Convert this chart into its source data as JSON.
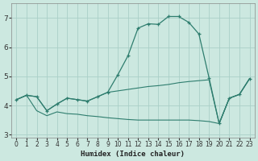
{
  "title": "",
  "xlabel": "Humidex (Indice chaleur)",
  "bg_color": "#cce8e0",
  "grid_color": "#aacfc8",
  "line_color": "#2e7d6e",
  "xlim": [
    -0.5,
    23.5
  ],
  "ylim": [
    2.9,
    7.5
  ],
  "yticks": [
    3,
    4,
    5,
    6,
    7
  ],
  "xticks": [
    0,
    1,
    2,
    3,
    4,
    5,
    6,
    7,
    8,
    9,
    10,
    11,
    12,
    13,
    14,
    15,
    16,
    17,
    18,
    19,
    20,
    21,
    22,
    23
  ],
  "lines": [
    {
      "x": [
        0,
        1,
        2,
        3,
        4,
        5,
        6,
        7,
        8,
        9,
        10,
        11,
        12,
        13,
        14,
        15,
        16,
        17,
        18,
        19,
        20,
        21,
        22,
        23
      ],
      "y": [
        4.2,
        4.35,
        4.3,
        3.82,
        4.05,
        4.25,
        4.2,
        4.15,
        4.3,
        4.45,
        5.05,
        5.7,
        6.65,
        6.8,
        6.78,
        7.05,
        7.05,
        6.85,
        6.45,
        4.95,
        3.38,
        4.25,
        4.38,
        4.92
      ],
      "marker": true
    },
    {
      "x": [
        0,
        1,
        2,
        3,
        4,
        5,
        6,
        7,
        8,
        9,
        10,
        11,
        12,
        13,
        14,
        15,
        16,
        17,
        18,
        19,
        20,
        21,
        22,
        23
      ],
      "y": [
        4.2,
        4.35,
        3.82,
        3.65,
        3.78,
        3.72,
        3.7,
        3.65,
        3.62,
        3.58,
        3.55,
        3.52,
        3.5,
        3.5,
        3.5,
        3.5,
        3.5,
        3.5,
        3.48,
        3.45,
        3.38,
        4.25,
        4.38,
        4.92
      ],
      "marker": false
    },
    {
      "x": [
        0,
        1,
        2,
        3,
        4,
        5,
        6,
        7,
        8,
        9,
        10,
        11,
        12,
        13,
        14,
        15,
        16,
        17,
        18,
        19,
        20,
        21,
        22,
        23
      ],
      "y": [
        4.2,
        4.35,
        4.3,
        3.82,
        4.05,
        4.25,
        4.2,
        4.15,
        4.3,
        4.45,
        4.5,
        4.55,
        4.6,
        4.65,
        4.68,
        4.72,
        4.78,
        4.82,
        4.85,
        4.88,
        3.38,
        4.25,
        4.38,
        4.92
      ],
      "marker": false
    }
  ]
}
